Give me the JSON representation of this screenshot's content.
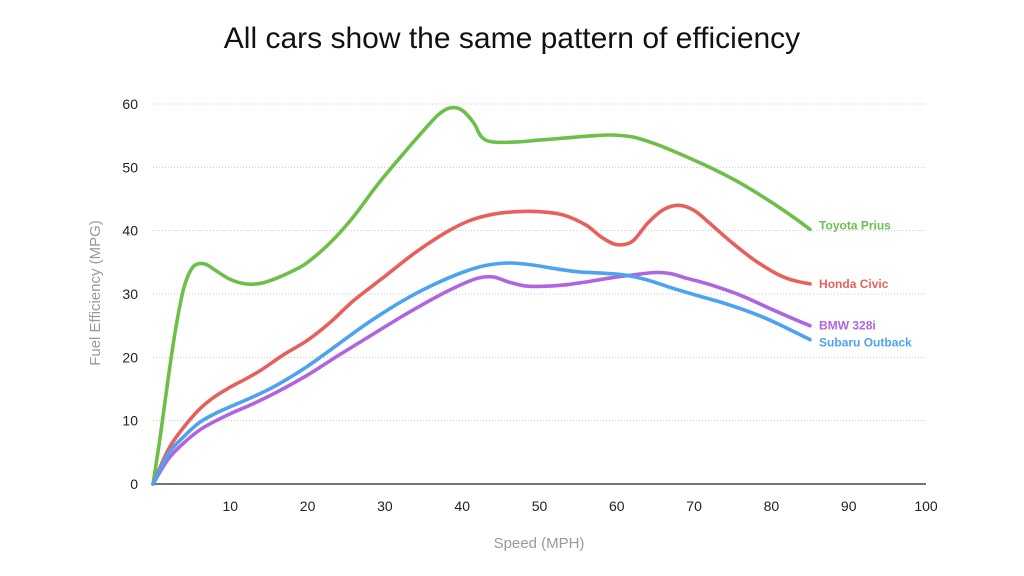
{
  "chart_data": {
    "type": "line",
    "title": "All cars show the same pattern of efficiency",
    "xlabel": "Speed (MPH)",
    "ylabel": "Fuel Efficiency (MPG)",
    "xlim": [
      0,
      100
    ],
    "ylim": [
      0,
      60
    ],
    "xticks": [
      10,
      20,
      30,
      40,
      50,
      60,
      70,
      80,
      90,
      100
    ],
    "yticks": [
      0,
      10,
      20,
      30,
      40,
      50,
      60
    ],
    "grid": true,
    "legend": "inline-right",
    "series": [
      {
        "name": "Toyota Prius",
        "color": "#6cc04a",
        "points": [
          [
            0,
            0
          ],
          [
            1,
            8
          ],
          [
            2,
            17
          ],
          [
            3,
            25
          ],
          [
            4,
            31
          ],
          [
            5,
            34
          ],
          [
            6,
            34.8
          ],
          [
            7,
            34.6
          ],
          [
            8,
            33.8
          ],
          [
            10,
            32.3
          ],
          [
            12,
            31.6
          ],
          [
            14,
            31.7
          ],
          [
            16,
            32.5
          ],
          [
            18,
            33.6
          ],
          [
            20,
            35
          ],
          [
            23,
            38.2
          ],
          [
            26,
            42.3
          ],
          [
            29,
            47.2
          ],
          [
            32,
            51.6
          ],
          [
            35,
            55.8
          ],
          [
            37,
            58.4
          ],
          [
            38.5,
            59.4
          ],
          [
            40,
            59
          ],
          [
            41.5,
            57
          ],
          [
            42.5,
            54.8
          ],
          [
            44,
            54
          ],
          [
            47,
            54
          ],
          [
            50,
            54.3
          ],
          [
            53,
            54.6
          ],
          [
            56,
            54.9
          ],
          [
            59,
            55.1
          ],
          [
            62,
            54.8
          ],
          [
            65,
            53.7
          ],
          [
            68,
            52.2
          ],
          [
            72,
            50
          ],
          [
            76,
            47.5
          ],
          [
            80,
            44.5
          ],
          [
            83,
            42
          ],
          [
            85,
            40.2
          ]
        ]
      },
      {
        "name": "Honda Civic",
        "color": "#e8605c",
        "points": [
          [
            0,
            0
          ],
          [
            2,
            5.5
          ],
          [
            4,
            9
          ],
          [
            6,
            11.8
          ],
          [
            8,
            13.8
          ],
          [
            10,
            15.3
          ],
          [
            12,
            16.6
          ],
          [
            14,
            18
          ],
          [
            17,
            20.5
          ],
          [
            20,
            22.7
          ],
          [
            23,
            25.6
          ],
          [
            26,
            29
          ],
          [
            30,
            32.8
          ],
          [
            34,
            36.6
          ],
          [
            38,
            39.8
          ],
          [
            41,
            41.6
          ],
          [
            44,
            42.6
          ],
          [
            47,
            43
          ],
          [
            50,
            43
          ],
          [
            53,
            42.5
          ],
          [
            56,
            40.9
          ],
          [
            58,
            39
          ],
          [
            60,
            37.8
          ],
          [
            62,
            38.3
          ],
          [
            64,
            41.2
          ],
          [
            66,
            43.3
          ],
          [
            68,
            44
          ],
          [
            70,
            43.2
          ],
          [
            72,
            41.2
          ],
          [
            75,
            38
          ],
          [
            78,
            35.2
          ],
          [
            81,
            33
          ],
          [
            83,
            32.1
          ],
          [
            85,
            31.6
          ]
        ]
      },
      {
        "name": "BMW 328i",
        "color": "#b065e0",
        "points": [
          [
            0,
            0
          ],
          [
            2,
            4
          ],
          [
            4,
            6.5
          ],
          [
            6,
            8.5
          ],
          [
            8,
            9.9
          ],
          [
            10,
            11.1
          ],
          [
            13,
            12.7
          ],
          [
            16,
            14.5
          ],
          [
            20,
            17.2
          ],
          [
            24,
            20.3
          ],
          [
            28,
            23.3
          ],
          [
            32,
            26.3
          ],
          [
            36,
            29.1
          ],
          [
            39,
            31
          ],
          [
            42,
            32.5
          ],
          [
            44,
            32.7
          ],
          [
            46,
            31.9
          ],
          [
            48,
            31.3
          ],
          [
            50,
            31.2
          ],
          [
            53,
            31.4
          ],
          [
            56,
            31.9
          ],
          [
            59,
            32.5
          ],
          [
            62,
            33
          ],
          [
            65,
            33.4
          ],
          [
            67,
            33.2
          ],
          [
            69,
            32.5
          ],
          [
            72,
            31.5
          ],
          [
            76,
            29.8
          ],
          [
            80,
            27.6
          ],
          [
            83,
            26
          ],
          [
            85,
            25
          ]
        ]
      },
      {
        "name": "Subaru Outback",
        "color": "#4ea3f0",
        "points": [
          [
            0,
            0
          ],
          [
            2,
            4.8
          ],
          [
            4,
            7.5
          ],
          [
            6,
            9.7
          ],
          [
            8,
            11.1
          ],
          [
            10,
            12.2
          ],
          [
            13,
            13.8
          ],
          [
            16,
            15.6
          ],
          [
            20,
            18.6
          ],
          [
            24,
            22.1
          ],
          [
            28,
            25.6
          ],
          [
            32,
            28.7
          ],
          [
            36,
            31.3
          ],
          [
            40,
            33.4
          ],
          [
            43,
            34.5
          ],
          [
            46,
            34.9
          ],
          [
            49,
            34.6
          ],
          [
            52,
            34
          ],
          [
            55,
            33.5
          ],
          [
            58,
            33.3
          ],
          [
            61,
            33
          ],
          [
            64,
            32.2
          ],
          [
            67,
            31
          ],
          [
            70,
            29.9
          ],
          [
            74,
            28.5
          ],
          [
            78,
            26.8
          ],
          [
            81,
            25.2
          ],
          [
            83,
            24
          ],
          [
            85,
            22.8
          ]
        ]
      }
    ]
  }
}
